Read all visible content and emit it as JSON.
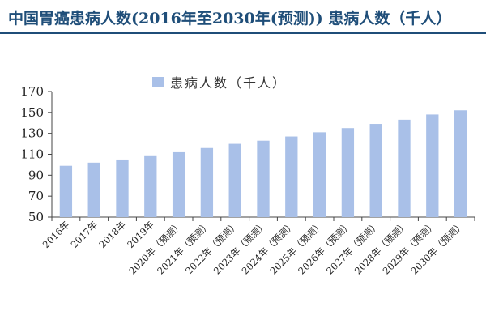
{
  "header": {
    "title": "中国胃癌患病人数(2016年至2030年(预测)) 患病人数（千人）"
  },
  "colors": {
    "bar": "#a9c0e8",
    "title": "#1f4e79",
    "axis": "#444444"
  },
  "chart_data": {
    "type": "bar",
    "title": "",
    "xlabel": "",
    "ylabel": "",
    "ylim": [
      50,
      170
    ],
    "yticks": [
      50,
      70,
      90,
      110,
      130,
      150,
      170
    ],
    "legend": {
      "position": "top-center",
      "label": "患病人数（千人）"
    },
    "grid": false,
    "categories": [
      "2016年",
      "2017年",
      "2018年",
      "2019年",
      "2020年（预测）",
      "2021年（预测）",
      "2022年（预测）",
      "2023年（预测）",
      "2024年（预测）",
      "2025年（预测）",
      "2026年（预测）",
      "2027年（预测）",
      "2028年（预测）",
      "2029年（预测）",
      "2030年（预测）"
    ],
    "series": [
      {
        "name": "患病人数（千人）",
        "values": [
          99,
          102,
          105,
          109,
          112,
          116,
          120,
          123,
          127,
          131,
          135,
          139,
          143,
          148,
          152
        ]
      }
    ]
  }
}
